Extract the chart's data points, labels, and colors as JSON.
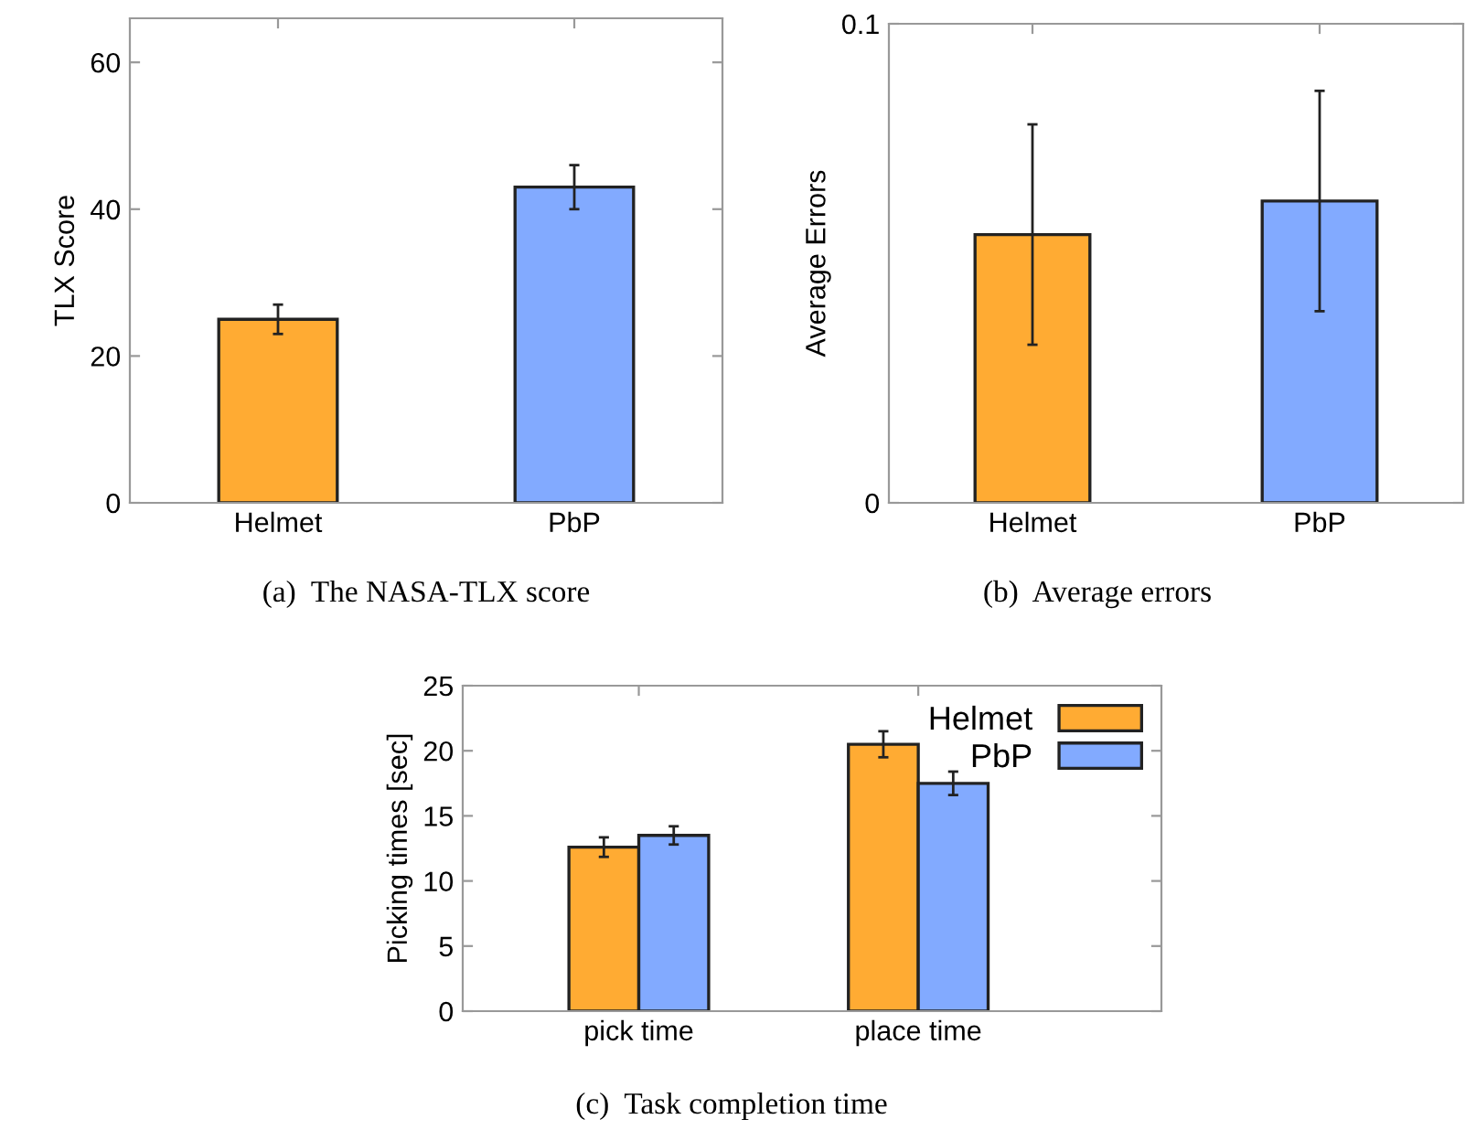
{
  "chart_data": [
    {
      "type": "bar",
      "ylabel": "TLX Score",
      "categories": [
        "Helmet",
        "PbP"
      ],
      "values": [
        25,
        43
      ],
      "errors": [
        2,
        3
      ],
      "colors": [
        "#ffab33",
        "#82aaff"
      ],
      "ylim": [
        0,
        66
      ],
      "yticks": [
        0,
        20,
        40,
        60
      ],
      "grid": false,
      "legend": false,
      "annotations": [
        "(a)  The NASA-TLX score"
      ]
    },
    {
      "type": "bar",
      "ylabel": "Average Errors",
      "categories": [
        "Helmet",
        "PbP"
      ],
      "values": [
        0.056,
        0.063
      ],
      "errors": [
        0.023,
        0.023
      ],
      "colors": [
        "#ffab33",
        "#82aaff"
      ],
      "ylim": [
        0,
        0.1
      ],
      "yticks": [
        0,
        0.1
      ],
      "grid": false,
      "legend": false,
      "annotations": [
        "(b)  Average errors"
      ]
    },
    {
      "type": "bar",
      "ylabel": "Picking times [sec]",
      "categories": [
        "pick time",
        "place time"
      ],
      "series": [
        {
          "name": "Helmet",
          "color": "#ffab33",
          "values": [
            12.6,
            20.5
          ],
          "errors": [
            0.75,
            1
          ]
        },
        {
          "name": "PbP",
          "color": "#82aaff",
          "values": [
            13.5,
            17.5
          ],
          "errors": [
            0.7,
            0.9
          ]
        }
      ],
      "ylim": [
        0,
        25
      ],
      "yticks": [
        0,
        5,
        10,
        15,
        20,
        25
      ],
      "grid": false,
      "legend": "top right",
      "annotations": [
        "(c)  Task completion time"
      ]
    }
  ]
}
